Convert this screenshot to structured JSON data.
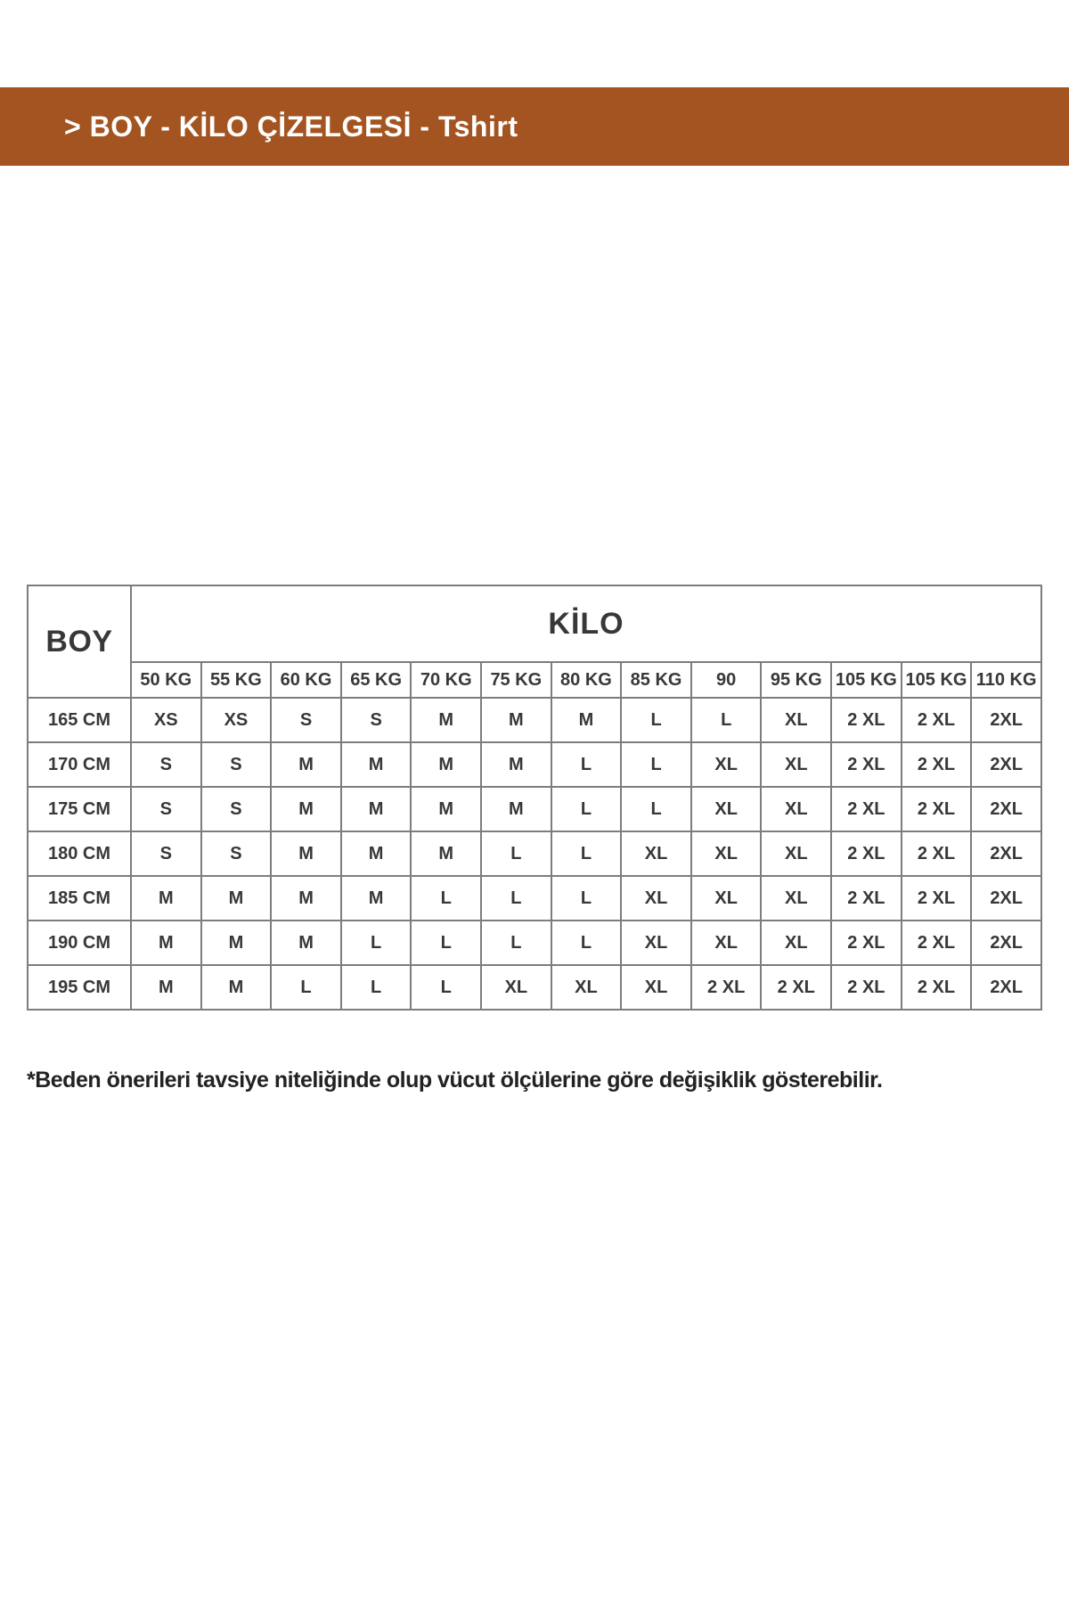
{
  "header": {
    "title": "> BOY - KİLO ÇİZELGESİ - Tshirt"
  },
  "colors": {
    "accent_brown": "#A35420",
    "table_border": "#7D7D7D",
    "text_dark": "#383838"
  },
  "table": {
    "corner_label": "BOY",
    "kilo_label": "KİLO",
    "weight_headers": [
      "50 KG",
      "55 KG",
      "60 KG",
      "65 KG",
      "70 KG",
      "75 KG",
      "80 KG",
      "85 KG",
      "90",
      "95 KG",
      "105 KG",
      "105 KG",
      "110 KG"
    ],
    "rows": [
      {
        "height": "165 CM",
        "sizes": [
          "XS",
          "XS",
          "S",
          "S",
          "M",
          "M",
          "M",
          "L",
          "L",
          "XL",
          "2 XL",
          "2 XL",
          "2XL"
        ]
      },
      {
        "height": "170 CM",
        "sizes": [
          "S",
          "S",
          "M",
          "M",
          "M",
          "M",
          "L",
          "L",
          "XL",
          "XL",
          "2 XL",
          "2 XL",
          "2XL"
        ]
      },
      {
        "height": "175 CM",
        "sizes": [
          "S",
          "S",
          "M",
          "M",
          "M",
          "M",
          "L",
          "L",
          "XL",
          "XL",
          "2 XL",
          "2 XL",
          "2XL"
        ]
      },
      {
        "height": "180 CM",
        "sizes": [
          "S",
          "S",
          "M",
          "M",
          "M",
          "L",
          "L",
          "XL",
          "XL",
          "XL",
          "2 XL",
          "2 XL",
          "2XL"
        ]
      },
      {
        "height": "185 CM",
        "sizes": [
          "M",
          "M",
          "M",
          "M",
          "L",
          "L",
          "L",
          "XL",
          "XL",
          "XL",
          "2 XL",
          "2 XL",
          "2XL"
        ]
      },
      {
        "height": "190 CM",
        "sizes": [
          "M",
          "M",
          "M",
          "L",
          "L",
          "L",
          "L",
          "XL",
          "XL",
          "XL",
          "2 XL",
          "2 XL",
          "2XL"
        ]
      },
      {
        "height": "195 CM",
        "sizes": [
          "M",
          "M",
          "L",
          "L",
          "L",
          "XL",
          "XL",
          "XL",
          "2 XL",
          "2 XL",
          "2 XL",
          "2 XL",
          "2XL"
        ]
      }
    ]
  },
  "footnote": {
    "text": "*Beden önerileri tavsiye niteliğinde olup vücut ölçülerine göre değişiklik gösterebilir."
  },
  "chart_data": {
    "type": "table",
    "title": "> BOY - KİLO ÇİZELGESİ - Tshirt",
    "row_axis_label": "BOY",
    "col_axis_label": "KİLO",
    "columns": [
      "50 KG",
      "55 KG",
      "60 KG",
      "65 KG",
      "70 KG",
      "75 KG",
      "80 KG",
      "85 KG",
      "90",
      "95 KG",
      "105 KG",
      "105 KG",
      "110 KG"
    ],
    "row_labels": [
      "165 CM",
      "170 CM",
      "175 CM",
      "180 CM",
      "185 CM",
      "190 CM",
      "195 CM"
    ],
    "values": [
      [
        "XS",
        "XS",
        "S",
        "S",
        "M",
        "M",
        "M",
        "L",
        "L",
        "XL",
        "2 XL",
        "2 XL",
        "2XL"
      ],
      [
        "S",
        "S",
        "M",
        "M",
        "M",
        "M",
        "L",
        "L",
        "XL",
        "XL",
        "2 XL",
        "2 XL",
        "2XL"
      ],
      [
        "S",
        "S",
        "M",
        "M",
        "M",
        "M",
        "L",
        "L",
        "XL",
        "XL",
        "2 XL",
        "2 XL",
        "2XL"
      ],
      [
        "S",
        "S",
        "M",
        "M",
        "M",
        "L",
        "L",
        "XL",
        "XL",
        "XL",
        "2 XL",
        "2 XL",
        "2XL"
      ],
      [
        "M",
        "M",
        "M",
        "M",
        "L",
        "L",
        "L",
        "XL",
        "XL",
        "XL",
        "2 XL",
        "2 XL",
        "2XL"
      ],
      [
        "M",
        "M",
        "M",
        "L",
        "L",
        "L",
        "L",
        "XL",
        "XL",
        "XL",
        "2 XL",
        "2 XL",
        "2XL"
      ],
      [
        "M",
        "M",
        "L",
        "L",
        "L",
        "XL",
        "XL",
        "XL",
        "2 XL",
        "2 XL",
        "2 XL",
        "2 XL",
        "2XL"
      ]
    ],
    "footnote": "*Beden önerileri tavsiye niteliğinde olup vücut ölçülerine göre değişiklik gösterebilir."
  }
}
